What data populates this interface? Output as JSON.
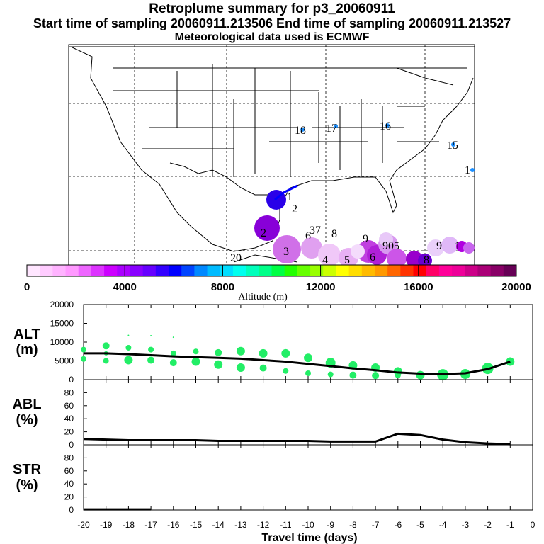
{
  "header": {
    "title": "Retroplume summary for p3_20060911",
    "sampling": "Start time of sampling 20060911.213506     End time of sampling 20060911.213527",
    "met": "Meteorological data used is ECMWF"
  },
  "colorbar": {
    "ticks": [
      "0",
      "4000",
      "8000",
      "12000",
      "16000",
      "20000"
    ],
    "label": "Altitude (m)",
    "colors": [
      "#ffe6ff",
      "#ffccff",
      "#ffb3ff",
      "#ff99ff",
      "#ee66ff",
      "#dd33ff",
      "#cc00ff",
      "#aa00ff",
      "#8800ff",
      "#6600ff",
      "#3300ff",
      "#0000ff",
      "#0044ff",
      "#0088ff",
      "#00bbff",
      "#00ddff",
      "#00ffee",
      "#00ffbb",
      "#00ff88",
      "#00ff44",
      "#22ff00",
      "#66ff00",
      "#99ff00",
      "#ccff00",
      "#ffff00",
      "#ffdd00",
      "#ffbb00",
      "#ff9900",
      "#ff6600",
      "#ff3300",
      "#ff0000",
      "#ff0066",
      "#ff0099",
      "#ee0099",
      "#cc0088",
      "#aa0077",
      "#880066",
      "#660055"
    ]
  },
  "map": {
    "labels": [
      {
        "t": "18",
        "c": "black"
      },
      {
        "t": "17",
        "c": "black"
      },
      {
        "t": "16",
        "c": "black"
      },
      {
        "t": "15",
        "c": "black"
      },
      {
        "t": "1",
        "c": "black"
      },
      {
        "t": "1",
        "c": "black"
      },
      {
        "t": "2",
        "c": "black"
      },
      {
        "t": "37",
        "c": "black"
      },
      {
        "t": "6",
        "c": "black"
      },
      {
        "t": "8",
        "c": "black"
      },
      {
        "t": "20",
        "c": "black"
      },
      {
        "t": "9",
        "c": "black"
      },
      {
        "t": "4",
        "c": "black"
      },
      {
        "t": "3",
        "c": "black"
      },
      {
        "t": "2",
        "c": "black"
      },
      {
        "t": "5",
        "c": "black"
      },
      {
        "t": "6",
        "c": "black"
      },
      {
        "t": "905",
        "c": "black"
      },
      {
        "t": "9",
        "c": "black"
      },
      {
        "t": "1",
        "c": "black"
      },
      {
        "t": "8",
        "c": "black"
      }
    ]
  },
  "chart_data": [
    {
      "type": "scatter",
      "panel": "ALT",
      "ylabel": "ALT\n(m)",
      "ylabel_lines": [
        "ALT",
        "(m)"
      ],
      "ylim": [
        0,
        20000
      ],
      "yticks": [
        "0",
        "5000",
        "10000",
        "15000",
        "20000"
      ],
      "xlim": [
        -20,
        0
      ],
      "median_line": {
        "x": [
          -20,
          -19,
          -18,
          -17,
          -16,
          -15,
          -14,
          -13,
          -12,
          -11,
          -10,
          -9,
          -8,
          -7,
          -6,
          -5,
          -4,
          -3,
          -2,
          -1
        ],
        "y": [
          7000,
          7000,
          6800,
          6500,
          6200,
          6000,
          5800,
          5600,
          5200,
          4800,
          4200,
          3600,
          3000,
          2500,
          1900,
          1600,
          1500,
          1700,
          2800,
          4800
        ]
      },
      "points": [
        {
          "x": -20,
          "y": 8000,
          "s": 4
        },
        {
          "x": -20,
          "y": 5500,
          "s": 4
        },
        {
          "x": -19,
          "y": 9000,
          "s": 5
        },
        {
          "x": -19,
          "y": 5000,
          "s": 4
        },
        {
          "x": -19,
          "y": 7000,
          "s": 3
        },
        {
          "x": -18,
          "y": 8500,
          "s": 4
        },
        {
          "x": -18,
          "y": 5200,
          "s": 6
        },
        {
          "x": -18,
          "y": 11800,
          "s": 1
        },
        {
          "x": -17,
          "y": 8000,
          "s": 4
        },
        {
          "x": -17,
          "y": 5200,
          "s": 5
        },
        {
          "x": -17,
          "y": 11700,
          "s": 1
        },
        {
          "x": -16,
          "y": 7000,
          "s": 4
        },
        {
          "x": -16,
          "y": 4500,
          "s": 5
        },
        {
          "x": -16,
          "y": 11300,
          "s": 1
        },
        {
          "x": -15,
          "y": 7500,
          "s": 4
        },
        {
          "x": -15,
          "y": 4800,
          "s": 6
        },
        {
          "x": -14,
          "y": 7200,
          "s": 5
        },
        {
          "x": -14,
          "y": 4000,
          "s": 6
        },
        {
          "x": -13,
          "y": 7600,
          "s": 6
        },
        {
          "x": -13,
          "y": 3200,
          "s": 6
        },
        {
          "x": -12,
          "y": 7000,
          "s": 6
        },
        {
          "x": -12,
          "y": 3100,
          "s": 5
        },
        {
          "x": -11,
          "y": 7000,
          "s": 6
        },
        {
          "x": -11,
          "y": 2300,
          "s": 4
        },
        {
          "x": -10,
          "y": 5800,
          "s": 6
        },
        {
          "x": -10,
          "y": 1700,
          "s": 4
        },
        {
          "x": -9,
          "y": 4500,
          "s": 7
        },
        {
          "x": -9,
          "y": 1400,
          "s": 4
        },
        {
          "x": -8,
          "y": 3800,
          "s": 6
        },
        {
          "x": -8,
          "y": 1200,
          "s": 5
        },
        {
          "x": -7,
          "y": 3200,
          "s": 6
        },
        {
          "x": -7,
          "y": 1100,
          "s": 5
        },
        {
          "x": -6,
          "y": 2200,
          "s": 6
        },
        {
          "x": -6,
          "y": 1100,
          "s": 4
        },
        {
          "x": -5,
          "y": 1200,
          "s": 6
        },
        {
          "x": -4,
          "y": 1300,
          "s": 8
        },
        {
          "x": -3,
          "y": 1500,
          "s": 7
        },
        {
          "x": -2,
          "y": 3000,
          "s": 8
        },
        {
          "x": -1,
          "y": 4800,
          "s": 6
        }
      ]
    },
    {
      "type": "line",
      "panel": "ABL",
      "ylabel_lines": [
        "ABL",
        "(%)"
      ],
      "ylim": [
        0,
        100
      ],
      "yticks": [
        "0",
        "20",
        "40",
        "60",
        "80"
      ],
      "xlim": [
        -20,
        0
      ],
      "x": [
        -20,
        -19,
        -18,
        -17,
        -16,
        -15,
        -14,
        -13,
        -12,
        -11,
        -10,
        -9,
        -8,
        -7,
        -6,
        -5,
        -4,
        -3,
        -2,
        -1
      ],
      "y": [
        9,
        8,
        7,
        7,
        7,
        7,
        6,
        6,
        6,
        6,
        6,
        5,
        5,
        5,
        17,
        15,
        8,
        4,
        2,
        1
      ]
    },
    {
      "type": "line",
      "panel": "STR",
      "ylabel_lines": [
        "STR",
        "(%)"
      ],
      "ylim": [
        0,
        100
      ],
      "yticks": [
        "0",
        "20",
        "40",
        "60",
        "80"
      ],
      "xlim": [
        -20,
        0
      ],
      "x": [
        -20,
        -19,
        -18,
        -17
      ],
      "y": [
        1,
        1,
        1,
        1
      ]
    }
  ],
  "xaxis": {
    "ticks": [
      "-20",
      "-19",
      "-18",
      "-17",
      "-16",
      "-15",
      "-14",
      "-13",
      "-12",
      "-11",
      "-10",
      "-9",
      "-8",
      "-7",
      "-6",
      "-5",
      "-4",
      "-3",
      "-2",
      "-1",
      "0"
    ],
    "label": "Travel time (days)"
  }
}
